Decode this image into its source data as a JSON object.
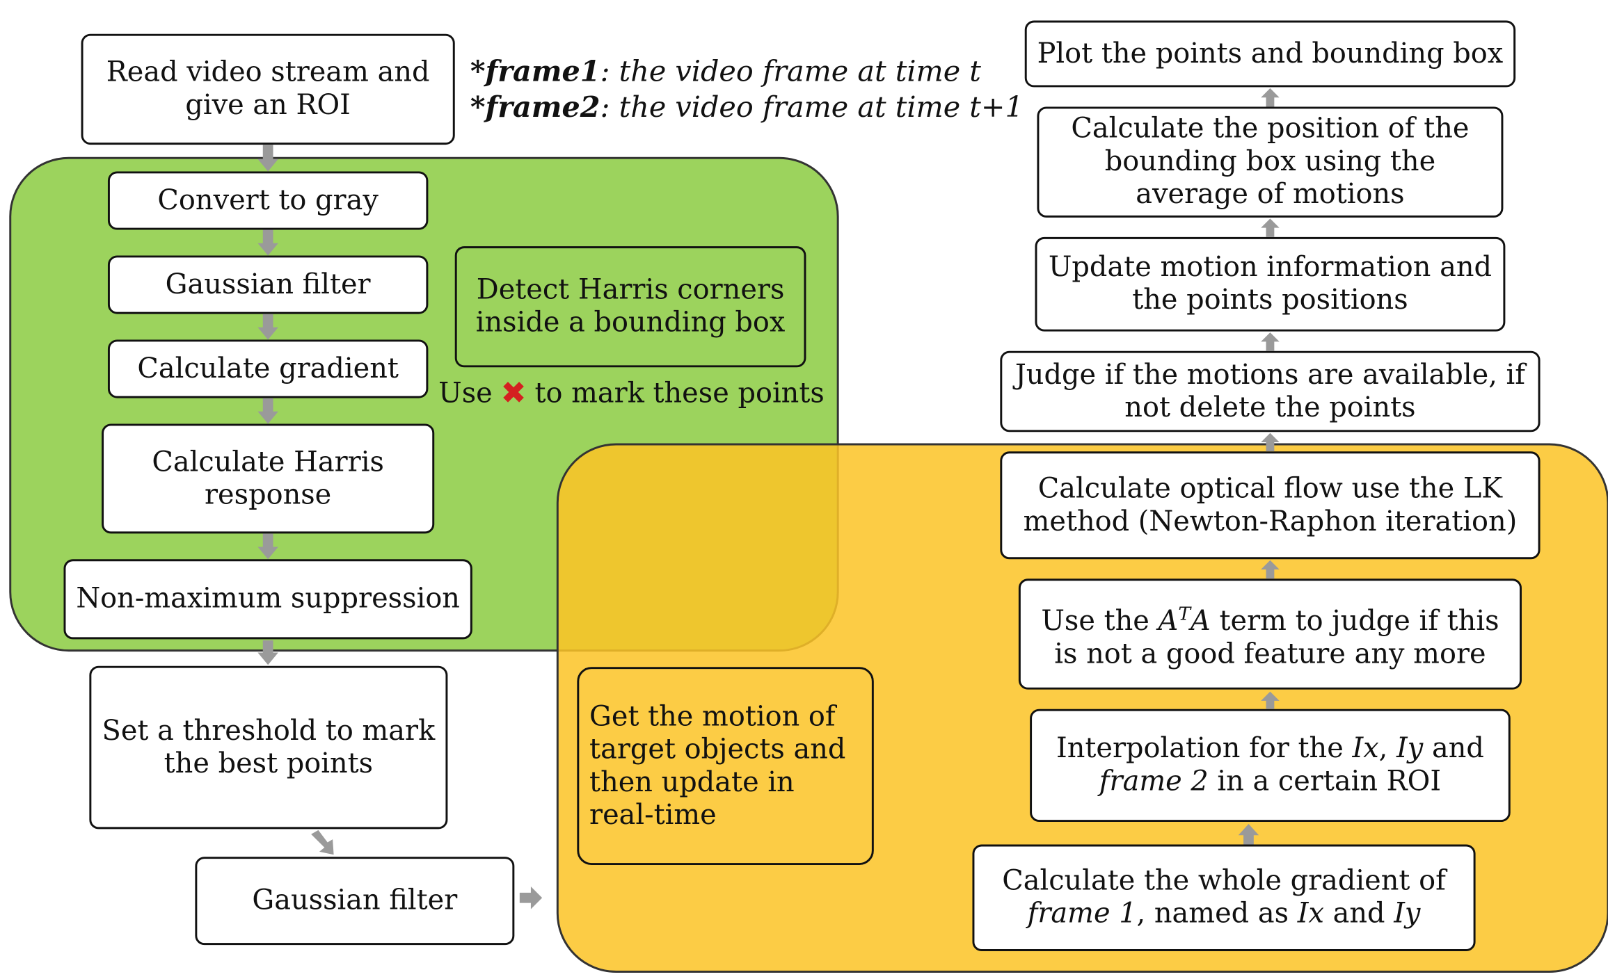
{
  "notes": {
    "frame1_key": "*frame1",
    "frame1_text": ": the video frame at time t",
    "frame2_key": "*frame2",
    "frame2_text": ": the video frame at time t+1"
  },
  "left_flow": {
    "read_video": "Read video stream and give an ROI",
    "convert_gray": "Convert to gray",
    "gaussian_filter_1": "Gaussian filter",
    "calc_gradient": "Calculate gradient",
    "harris_response": "Calculate Harris response",
    "non_max": "Non-maximum suppression",
    "threshold": "Set a threshold to mark the best points",
    "gaussian_filter_2": "Gaussian filter"
  },
  "green_region": {
    "detect_harris": "Detect Harris corners inside a bounding box",
    "use_prefix": "Use",
    "use_suffix": "to mark these points",
    "mark_symbol": "✖"
  },
  "yellow_region": {
    "motion_note": "Get the motion of target objects and then update in real-time"
  },
  "right_flow": {
    "plot": "Plot the points and bounding box",
    "bbox_pos": "Calculate the position of the bounding box using the average of motions",
    "update_motion": "Update motion information and the points positions",
    "judge_motion": "Judge if the motions are available, if not delete the points",
    "optical_flow": "Calculate optical flow use the LK method (Newton-Raphon iteration)",
    "ata_1": "Use the ",
    "ata_A1": "A",
    "ata_T": "T",
    "ata_A2": "A",
    "ata_2": " term to judge if this is not a good feature any more",
    "interp_1": "Interpolation for the ",
    "interp_Ix": "Ix",
    "interp_2": ", ",
    "interp_Iy": "Iy",
    "interp_3": " and ",
    "interp_frame2": "frame 2",
    "interp_4": " in a certain ROI",
    "whole_1": "Calculate the whole gradient of ",
    "whole_frame1": "frame 1",
    "whole_2": ", named as ",
    "whole_Ix": "Ix",
    "whole_3": " and ",
    "whole_Iy": "Iy"
  },
  "colors": {
    "green_region": "#8ccc42",
    "yellow_region": "#fbc426",
    "arrow": "#9a9a9a",
    "mark": "#d42020"
  }
}
